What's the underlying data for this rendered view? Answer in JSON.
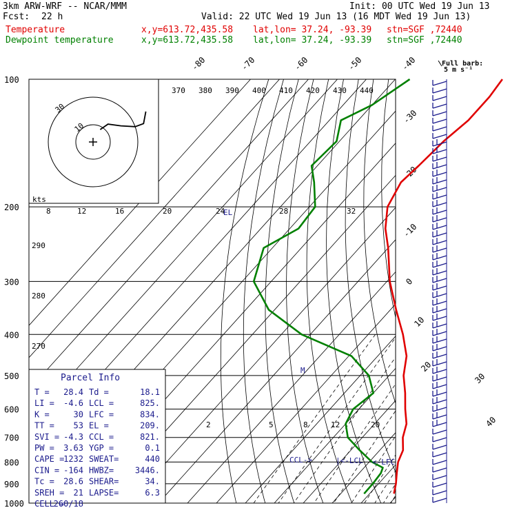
{
  "header": {
    "model": "3km ARW-WRF -- NCAR/MMM",
    "init": "Init: 00 UTC Wed 19 Jun 13",
    "fcst_label": "Fcst:",
    "fcst_value": "22 h",
    "valid": "Valid: 22 UTC Wed 19 Jun 13 (16 MDT Wed 19 Jun 13)",
    "temp_label": "Temperature",
    "dew_label": "Dewpoint temperature",
    "xy": "x,y=613.72,435.58",
    "latlon": "lat,lon= 37.24, -93.39",
    "stn": "stn=SGF ,72440"
  },
  "barb_key": {
    "title": "Full barb:",
    "value": "5 m s⁻¹"
  },
  "hodograph": {
    "units": "kts",
    "ring_labels": [
      "10",
      "30"
    ]
  },
  "parcel_info": {
    "title": "Parcel Info",
    "rows": [
      [
        "T  =",
        "28.4",
        "Td =",
        "18.1"
      ],
      [
        "LI =",
        "-4.6",
        "LCL =",
        "825."
      ],
      [
        "K  =",
        "30",
        "LFC =",
        "834."
      ],
      [
        "TT =",
        "53",
        "EL  =",
        "209."
      ],
      [
        "SVI =",
        "-4.3",
        "CCL =",
        "821."
      ],
      [
        "PW =",
        "3.63",
        "YGP =",
        "0.1"
      ],
      [
        "CAPE =",
        "1232",
        "SWEAT=",
        "440"
      ],
      [
        "CIN =",
        "-164",
        "HWBZ=",
        "3446."
      ],
      [
        "Tc =",
        "28.6",
        "SHEAR=",
        "34."
      ],
      [
        "SREH =",
        "21",
        "LAPSE=",
        "6.3"
      ],
      [
        "CELL =",
        "260/18",
        "",
        ""
      ]
    ]
  },
  "level_markers": {
    "el": "EL",
    "ccl": "CCL->",
    "lcl": "|<-LCL",
    "lfc": "<-LFC",
    "m": "M"
  },
  "chart_data": {
    "type": "line",
    "title": "",
    "pressure_levels": [
      100,
      200,
      300,
      400,
      500,
      600,
      700,
      800,
      900,
      1000
    ],
    "isotherm_labels": [
      -80,
      -70,
      -60,
      -50,
      -40,
      -30,
      -20,
      -10,
      0,
      10,
      20,
      30,
      40
    ],
    "theta_labels": [
      370,
      380,
      390,
      400,
      410,
      420,
      430,
      440
    ],
    "theta_side_labels": [
      290,
      280,
      270
    ],
    "mixing_ratio_labels_top": [
      8,
      12,
      16,
      20,
      24,
      28,
      32
    ],
    "mixing_ratio_labels_bottom": [
      2,
      5,
      8,
      12,
      20
    ],
    "series": [
      {
        "name": "Temperature",
        "color": "#e00000",
        "points": [
          [
            100,
            -63
          ],
          [
            110,
            -62
          ],
          [
            125,
            -62
          ],
          [
            140,
            -64
          ],
          [
            160,
            -65
          ],
          [
            175,
            -66
          ],
          [
            200,
            -63
          ],
          [
            225,
            -57
          ],
          [
            250,
            -50
          ],
          [
            300,
            -39
          ],
          [
            350,
            -28
          ],
          [
            400,
            -18
          ],
          [
            450,
            -10
          ],
          [
            500,
            -5
          ],
          [
            550,
            1
          ],
          [
            600,
            6
          ],
          [
            650,
            11
          ],
          [
            700,
            14
          ],
          [
            750,
            18
          ],
          [
            800,
            20
          ],
          [
            850,
            23
          ],
          [
            900,
            26
          ],
          [
            950,
            28.4
          ]
        ]
      },
      {
        "name": "Dewpoint temperature",
        "color": "#008000",
        "points": [
          [
            100,
            -95
          ],
          [
            115,
            -100
          ],
          [
            125,
            -106
          ],
          [
            140,
            -101
          ],
          [
            160,
            -102
          ],
          [
            175,
            -96
          ],
          [
            200,
            -88
          ],
          [
            225,
            -87
          ],
          [
            250,
            -93
          ],
          [
            300,
            -86
          ],
          [
            350,
            -72
          ],
          [
            400,
            -53
          ],
          [
            450,
            -29
          ],
          [
            500,
            -17
          ],
          [
            550,
            -10
          ],
          [
            600,
            -12
          ],
          [
            650,
            -10
          ],
          [
            700,
            -5
          ],
          [
            750,
            3
          ],
          [
            800,
            11
          ],
          [
            825,
            16.5
          ],
          [
            850,
            17.5
          ],
          [
            900,
            18
          ],
          [
            950,
            18.1
          ]
        ]
      }
    ],
    "hodograph_winds": [
      [
        30,
        8
      ],
      [
        40,
        13
      ],
      [
        60,
        18
      ],
      [
        70,
        25
      ],
      [
        70,
        30
      ],
      [
        60,
        34
      ]
    ]
  }
}
